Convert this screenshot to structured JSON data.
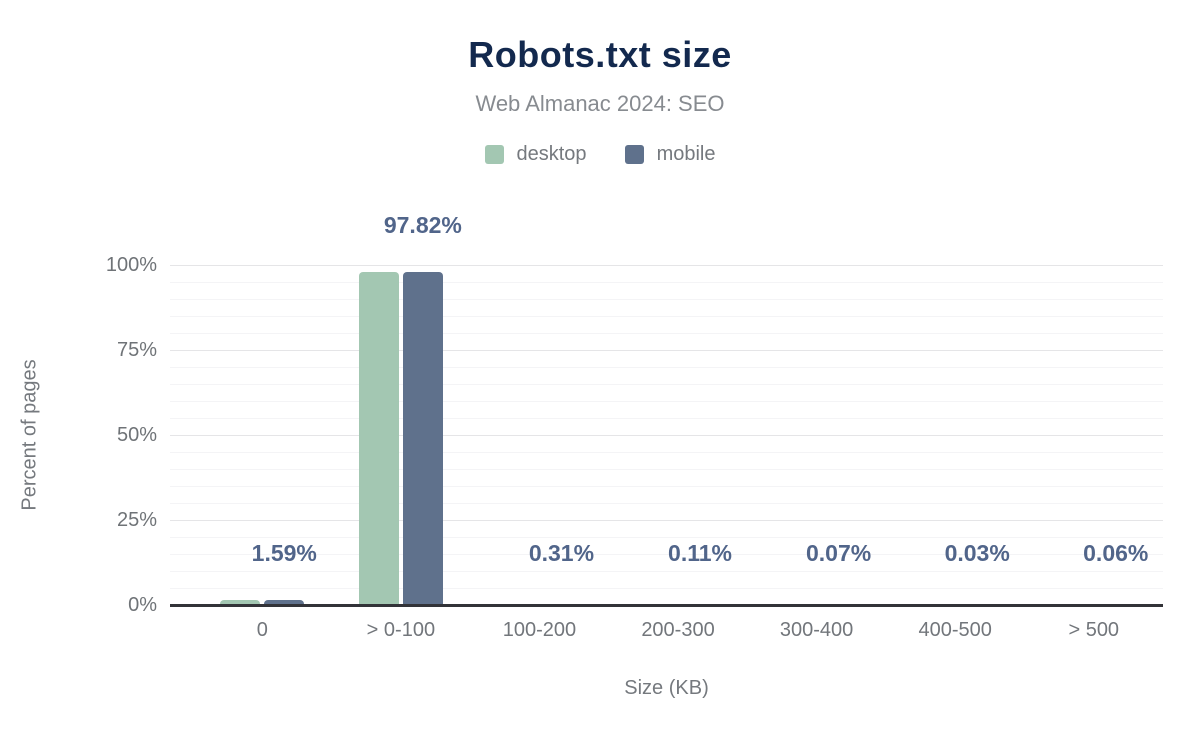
{
  "header": {
    "title": "Robots.txt size",
    "subtitle": "Web Almanac 2024: SEO"
  },
  "legend": [
    {
      "label": "desktop",
      "color": "#a3c7b2"
    },
    {
      "label": "mobile",
      "color": "#5f718c"
    }
  ],
  "chart_data": {
    "type": "bar",
    "title": "Robots.txt size",
    "subtitle": "Web Almanac 2024: SEO",
    "categories": [
      "0",
      "> 0-100",
      "100-200",
      "200-300",
      "300-400",
      "400-500",
      "> 500"
    ],
    "series": [
      {
        "name": "desktop",
        "color": "#a3c7b2",
        "values": [
          1.59,
          97.82,
          0.31,
          0.11,
          0.07,
          0.03,
          0.06
        ]
      },
      {
        "name": "mobile",
        "color": "#5f718c",
        "values": [
          1.59,
          97.82,
          0.31,
          0.11,
          0.07,
          0.03,
          0.06
        ],
        "data_labels": [
          "1.59%",
          "97.82%",
          "0.31%",
          "0.11%",
          "0.07%",
          "0.03%",
          "0.06%"
        ]
      }
    ],
    "xlabel": "Size (KB)",
    "ylabel": "Percent of pages",
    "y_ticks": [
      "0%",
      "25%",
      "50%",
      "75%",
      "100%"
    ],
    "ylim": [
      0,
      100
    ],
    "grid": {
      "major_step": 25,
      "minor_step": 5,
      "visible": true
    },
    "legend_position": "top",
    "colors": {
      "title": "#13294e",
      "subtitle": "#878b90",
      "data_label": "#51658a",
      "tick_label": "#6f7377",
      "axis_line": "#323338",
      "grid_major": "#e5e5e7",
      "grid_minor": "#f4f4f6"
    }
  }
}
